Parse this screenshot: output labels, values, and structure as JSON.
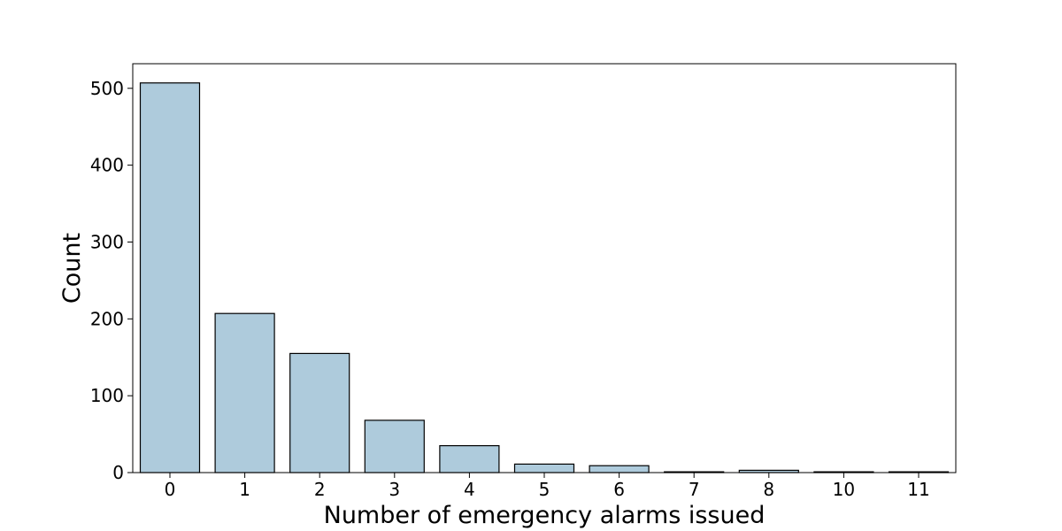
{
  "chart_data": {
    "type": "bar",
    "categories": [
      "0",
      "1",
      "2",
      "3",
      "4",
      "5",
      "6",
      "7",
      "8",
      "10",
      "11"
    ],
    "values": [
      507,
      207,
      155,
      68,
      35,
      11,
      9,
      1,
      3,
      1,
      1
    ],
    "title": "",
    "xlabel": "Number of emergency alarms issued",
    "ylabel": "Count",
    "ylim": [
      0,
      532
    ],
    "yticks": [
      0,
      100,
      200,
      300,
      400,
      500
    ],
    "grid": false,
    "legend": "none",
    "colors": {
      "bar_fill": "#aecbdc",
      "bar_edge": "#000000",
      "axis": "#000000",
      "background": "#ffffff"
    }
  }
}
